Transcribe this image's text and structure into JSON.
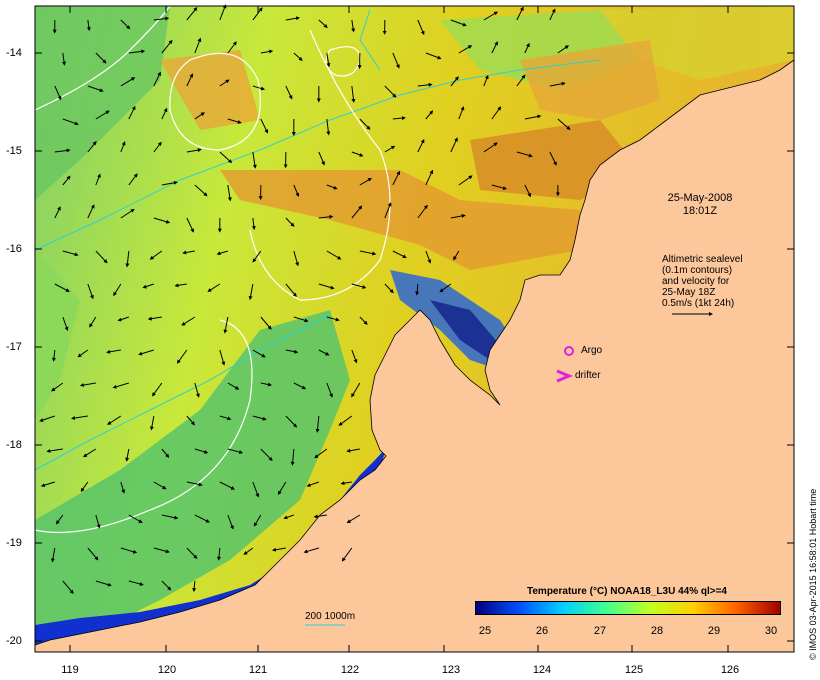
{
  "map": {
    "latitude_labels": [
      "-14",
      "-15",
      "-16",
      "-17",
      "-18",
      "-19",
      "-20"
    ],
    "longitude_labels": [
      "119",
      "120",
      "121",
      "122",
      "123",
      "124",
      "125",
      "126"
    ],
    "date_line1": "25-May-2008",
    "date_line2": "18:01Z",
    "altimetry_note": [
      "Altimetric sealevel",
      "(0.1m contours)",
      "and velocity for",
      "25-May 18Z",
      "0.5m/s (1kt 24h)"
    ],
    "argo_label": "Argo",
    "drifter_label": "drifter",
    "depth_contours_label": "200  1000m",
    "credit": "© IMOS 03-Apr-2015 16:58:01 Hobart time"
  },
  "legend": {
    "title": "Temperature (°C) NOAA18_L3U 44% ql>=4",
    "ticks": [
      "25",
      "26",
      "27",
      "28",
      "29",
      "30"
    ],
    "colors": [
      "#00007f",
      "#0050ff",
      "#00d0ff",
      "#40ff90",
      "#c0ff20",
      "#ffd000",
      "#ff6000",
      "#a00000"
    ]
  },
  "colors": {
    "land": "#fbc79b",
    "marker": "#e020e0",
    "contour_white": "#ffffff",
    "contour_cyan": "#30d0d0"
  }
}
